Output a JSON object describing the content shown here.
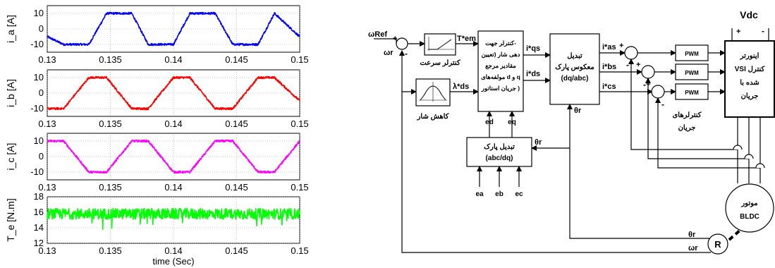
{
  "chart_data": [
    {
      "type": "line",
      "ylabel": "i_a [A]",
      "xlim": [
        0.13,
        0.15
      ],
      "ylim": [
        -15,
        15
      ],
      "yticks": [
        -10,
        0,
        10
      ],
      "xticks": [
        "0.13",
        "0.135",
        "0.14",
        "0.145",
        "0.15"
      ],
      "grid": true,
      "color": "#0000ff",
      "series": [
        {
          "x": [
            0.13,
            0.1313,
            0.1333,
            0.1347,
            0.1367,
            0.138,
            0.14,
            0.1413,
            0.1433,
            0.1447,
            0.1467,
            0.148,
            0.15
          ],
          "y": [
            -5,
            -10,
            -10,
            10,
            10,
            -10,
            -10,
            10,
            10,
            -10,
            -10,
            10,
            -5
          ]
        }
      ]
    },
    {
      "type": "line",
      "ylabel": "i_b [A]",
      "xlim": [
        0.13,
        0.15
      ],
      "ylim": [
        -15,
        15
      ],
      "yticks": [
        -10,
        0,
        10
      ],
      "xticks": [
        "0.13",
        "0.135",
        "0.14",
        "0.145",
        "0.15"
      ],
      "grid": true,
      "color": "#ff0000",
      "series": [
        {
          "x": [
            0.13,
            0.1313,
            0.1333,
            0.1347,
            0.1367,
            0.138,
            0.14,
            0.1413,
            0.1433,
            0.1447,
            0.1467,
            0.148,
            0.15
          ],
          "y": [
            -10,
            -10,
            10,
            10,
            -10,
            -10,
            10,
            10,
            -10,
            -10,
            10,
            10,
            -5
          ]
        }
      ]
    },
    {
      "type": "line",
      "ylabel": "i_c [A]",
      "xlim": [
        0.13,
        0.15
      ],
      "ylim": [
        -15,
        15
      ],
      "yticks": [
        -10,
        0,
        10
      ],
      "xticks": [
        "0.13",
        "0.135",
        "0.14",
        "0.145",
        "0.15"
      ],
      "grid": true,
      "color": "#ff00ff",
      "series": [
        {
          "x": [
            0.13,
            0.1313,
            0.1333,
            0.1347,
            0.1367,
            0.138,
            0.14,
            0.1413,
            0.1433,
            0.1447,
            0.1467,
            0.148,
            0.15
          ],
          "y": [
            10,
            10,
            -10,
            -10,
            10,
            10,
            -10,
            -10,
            10,
            10,
            -10,
            -10,
            10
          ]
        }
      ]
    },
    {
      "type": "line",
      "ylabel": "T_e [N.m]",
      "xlabel": "time (Sec)",
      "xlim": [
        0.13,
        0.15
      ],
      "ylim": [
        12,
        18
      ],
      "yticks": [
        12,
        14,
        16,
        18
      ],
      "xticks": [
        "0.13",
        "0.135",
        "0.14",
        "0.145",
        "0.15"
      ],
      "grid": true,
      "color": "#00ff00",
      "mean": 15.8,
      "noise": 0.7
    }
  ],
  "diagram": {
    "omega_ref": "ωRef",
    "omega_r": "ωr",
    "plus": "+",
    "minus": "-",
    "speed_ctrl": "کنترلر سرعت",
    "tem": "T*em",
    "flux_weak": "کاهش شار",
    "lambda_ds": "λ*ds",
    "ref_block_lines": [
      "کنترلر جهت-",
      "دهی شار (تعیین",
      "مقادیر مرجع",
      "مولفه‌های d و q",
      "جریان استاتور )"
    ],
    "ed": "ed",
    "eq": "eq",
    "iqs": "i*qs",
    "ids": "i*ds",
    "inv_park_lines": [
      "تبدیل",
      "معکوس پارک",
      "(dq/abc)"
    ],
    "theta_r": "θr",
    "park_lines": [
      "تبدیل پارک",
      "(abc/dq)"
    ],
    "ea": "ea",
    "eb": "eb",
    "ec": "ec",
    "ias": "i*as",
    "ibs": "i*bs",
    "ics": "i*cs",
    "pwm": "PWM",
    "curr_ctrl_lines": [
      "کنترلرهای",
      "جریان"
    ],
    "vdc": "Vdc",
    "inverter_lines": [
      "اینورتر",
      "VSI کنترل",
      "شده با",
      "جریان"
    ],
    "motor_lines": [
      "موتور",
      "BLDC"
    ],
    "resolver": "R"
  }
}
